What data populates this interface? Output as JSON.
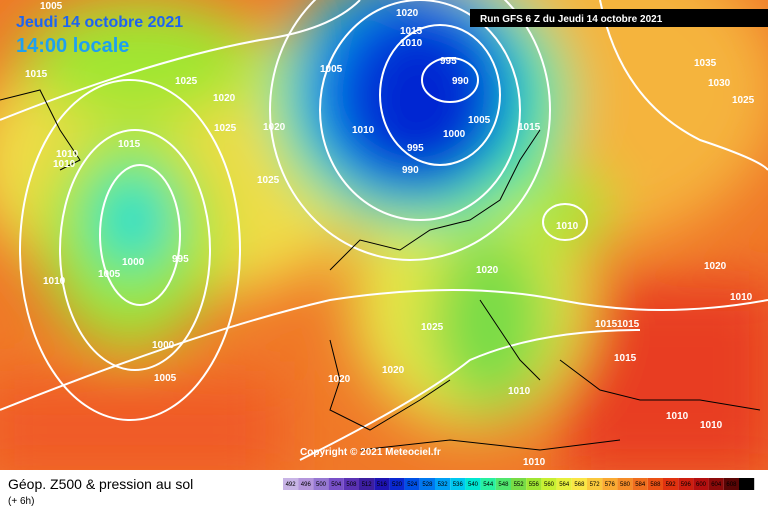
{
  "header": {
    "date": "Jeudi 14 octobre 2021",
    "time": "14:00 locale",
    "run": "Run GFS 6 Z du Jeudi 14 octobre 2021"
  },
  "map": {
    "copyright": "Copyright © 2021 Meteociel.fr",
    "isobar_labels": [
      "1005",
      "1020",
      "1015",
      "1010",
      "995",
      "990",
      "1035",
      "1030",
      "1025",
      "1015",
      "1025",
      "1005",
      "1020",
      "1025",
      "1020",
      "1010",
      "1005",
      "1015",
      "1000",
      "995",
      "990",
      "1015",
      "1010",
      "1010",
      "1025",
      "1010",
      "1000",
      "995",
      "1005",
      "1010",
      "1020",
      "1020",
      "1010",
      "1025",
      "1015",
      "1015",
      "1000",
      "1015",
      "1020",
      "1020",
      "1005",
      "1010",
      "1010",
      "1010",
      "1010"
    ]
  },
  "footer": {
    "title": "Géop. Z500 & pression au sol",
    "lead": "(+ 6h)"
  },
  "scale": {
    "values": [
      492,
      496,
      500,
      504,
      508,
      512,
      516,
      520,
      524,
      528,
      532,
      536,
      540,
      544,
      548,
      552,
      556,
      560,
      564,
      568,
      572,
      576,
      580,
      584,
      588,
      592,
      596,
      600,
      604,
      608,
      612
    ],
    "colors": [
      "#c8b4e6",
      "#b496dc",
      "#9678d2",
      "#7850c8",
      "#5a32b4",
      "#3c1ea0",
      "#1e14b4",
      "#0a28d2",
      "#0050e6",
      "#0078f0",
      "#00a0f5",
      "#00c8f0",
      "#00e6d2",
      "#28f0a0",
      "#50e66e",
      "#78dc46",
      "#a0e632",
      "#c8f032",
      "#e6f03c",
      "#fae646",
      "#fac83c",
      "#faaa32",
      "#f58c28",
      "#f06e1e",
      "#eb5014",
      "#e1320f",
      "#cd1e0f",
      "#b40f0f",
      "#8c0a0a",
      "#5a0505",
      "#000000"
    ]
  }
}
